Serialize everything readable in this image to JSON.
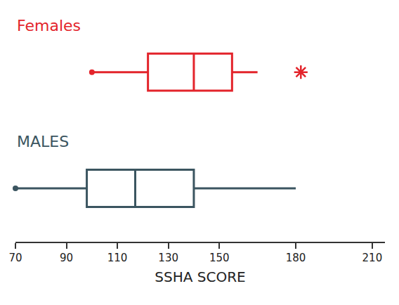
{
  "chart_data": {
    "type": "box",
    "orientation": "horizontal",
    "xlabel": "SSHA SCORE",
    "xlim": [
      70,
      215
    ],
    "xticks": [
      70,
      90,
      110,
      130,
      150,
      180,
      210
    ],
    "tick_labels": "x",
    "grid": false,
    "series": [
      {
        "name": "Females",
        "color": "#e3242b",
        "min": 100,
        "q1": 122,
        "median": 140,
        "q3": 155,
        "max": 165,
        "outliers": [
          182
        ]
      },
      {
        "name": "MALES",
        "color": "#3b5560",
        "min": 70,
        "q1": 98,
        "median": 117,
        "q3": 140,
        "max": 180
      }
    ]
  }
}
